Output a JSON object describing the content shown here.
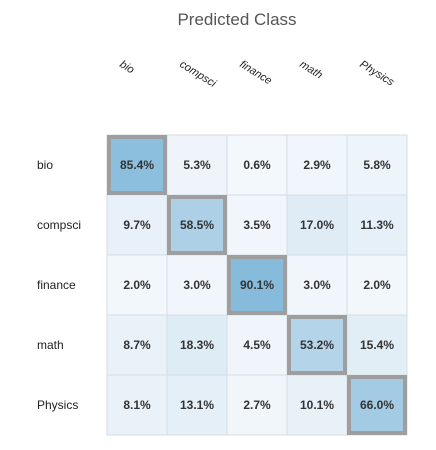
{
  "chart_data": {
    "type": "heatmap",
    "title": "Predicted Class",
    "columns": [
      "bio",
      "compsci",
      "finance",
      "math",
      "Physics"
    ],
    "rows": [
      "bio",
      "compsci",
      "finance",
      "math",
      "Physics"
    ],
    "values": [
      [
        85.4,
        5.3,
        0.6,
        2.9,
        5.8
      ],
      [
        9.7,
        58.5,
        3.5,
        17.0,
        11.3
      ],
      [
        2.0,
        3.0,
        90.1,
        3.0,
        2.0
      ],
      [
        8.7,
        18.3,
        4.5,
        53.2,
        15.4
      ],
      [
        8.1,
        13.1,
        2.7,
        10.1,
        66.0
      ]
    ],
    "labels": [
      [
        "85.4%",
        "5.3%",
        "0.6%",
        "2.9%",
        "5.8%"
      ],
      [
        "9.7%",
        "58.5%",
        "3.5%",
        "17.0%",
        "11.3%"
      ],
      [
        "2.0%",
        "3.0%",
        "90.1%",
        "3.0%",
        "2.0%"
      ],
      [
        "8.7%",
        "18.3%",
        "4.5%",
        "53.2%",
        "15.4%"
      ],
      [
        "8.1%",
        "13.1%",
        "2.7%",
        "10.1%",
        "66.0%"
      ]
    ],
    "diagonal_highlighted": true,
    "colors": {
      "low": "#f4f8fc",
      "high": "#7ab4d8",
      "highlight_border": "#9e9e9e",
      "grid": "#d6dde4"
    }
  }
}
